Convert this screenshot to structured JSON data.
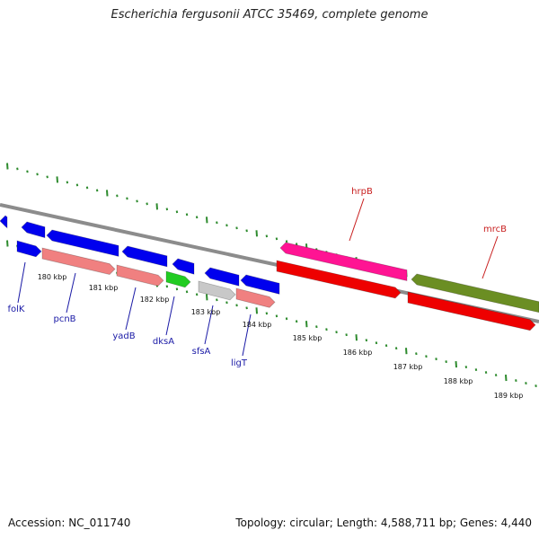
{
  "title": "Escherichia fergusonii ATCC 35469, complete genome",
  "footer": {
    "accession": "Accession: NC_011740",
    "summary": "Topology: circular; Length: 4,588,711 bp; Genes: 4,440"
  },
  "colors": {
    "backbone": "#8c8c8c",
    "tick": "#2e8b2e",
    "label_blue": "#1a1aa6",
    "label_red": "#c81e1e"
  },
  "scale": {
    "kbp_labels": [
      "180 kbp",
      "181 kbp",
      "182 kbp",
      "183 kbp",
      "184 kbp",
      "185 kbp",
      "186 kbp",
      "187 kbp",
      "188 kbp",
      "189 kbp"
    ]
  },
  "genes": [
    {
      "name": "folK",
      "color": "#1a1aa6"
    },
    {
      "name": "pcnB",
      "color": "#1a1aa6"
    },
    {
      "name": "yadB",
      "color": "#1a1aa6"
    },
    {
      "name": "dksA",
      "color": "#1a1aa6"
    },
    {
      "name": "sfsA",
      "color": "#1a1aa6"
    },
    {
      "name": "ligT",
      "color": "#1a1aa6"
    },
    {
      "name": "hrpB",
      "color": "#c81e1e"
    },
    {
      "name": "mrcB",
      "color": "#c81e1e"
    }
  ],
  "features": [
    {
      "id": "f1",
      "color": "#0000ee",
      "strand": "reverse"
    },
    {
      "id": "f2",
      "color": "#0000ee",
      "strand": "reverse"
    },
    {
      "id": "f3",
      "color": "#0000ee",
      "strand": "reverse"
    },
    {
      "id": "f4",
      "color": "#0000ee",
      "strand": "reverse"
    },
    {
      "id": "f5",
      "color": "#0000ee",
      "strand": "reverse"
    },
    {
      "id": "f6",
      "color": "#0000ee",
      "strand": "reverse"
    },
    {
      "id": "f7",
      "color": "#0000ee",
      "strand": "reverse"
    },
    {
      "id": "f8",
      "color": "#0000ee",
      "strand": "forward"
    },
    {
      "id": "f9",
      "color": "#f08080",
      "strand": "forward"
    },
    {
      "id": "f10",
      "color": "#f08080",
      "strand": "forward"
    },
    {
      "id": "f11",
      "color": "#22cc22",
      "strand": "forward"
    },
    {
      "id": "f12",
      "color": "#c8c8c8",
      "strand": "forward"
    },
    {
      "id": "f13",
      "color": "#f08080",
      "strand": "forward"
    },
    {
      "id": "f14",
      "color": "#ff1493",
      "strand": "reverse"
    },
    {
      "id": "f15",
      "color": "#6b8e23",
      "strand": "reverse"
    },
    {
      "id": "f16",
      "color": "#ee0000",
      "strand": "forward"
    },
    {
      "id": "f17",
      "color": "#ee0000",
      "strand": "forward"
    }
  ]
}
